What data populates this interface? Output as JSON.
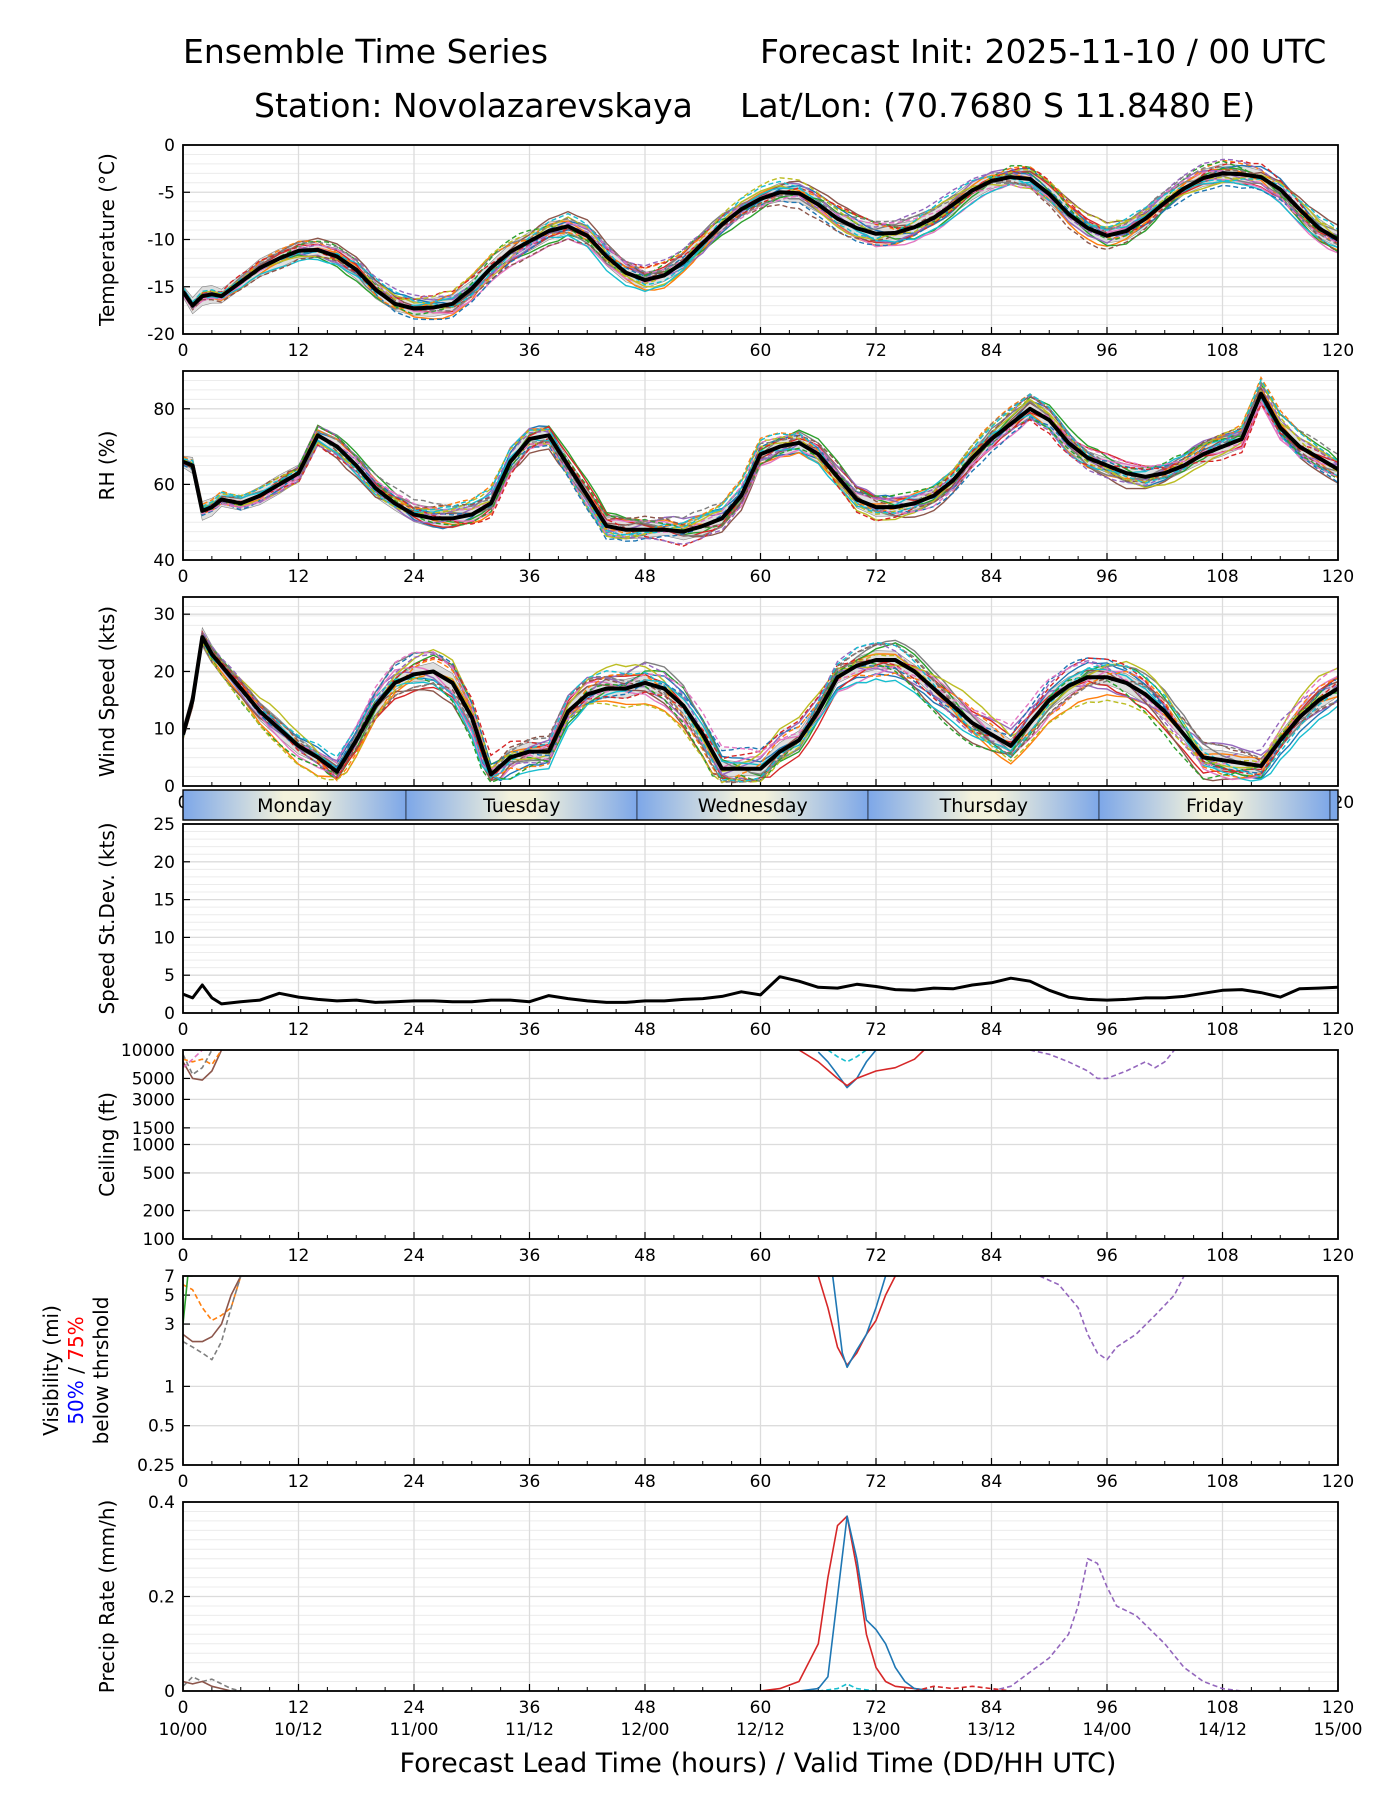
{
  "header": {
    "title": "Ensemble Time Series",
    "init": "Forecast Init: 2025-11-10 / 00 UTC",
    "station": "Station: Novolazarevskaya",
    "latlon": "Lat/Lon: (70.7680 S 11.8480 E)"
  },
  "xlabel": "Forecast Lead Time (hours) / Valid Time (DD/HH UTC)",
  "lead_ticks": [
    0,
    12,
    24,
    36,
    48,
    60,
    72,
    84,
    96,
    108,
    120
  ],
  "valid_tick_labels": [
    "10/00",
    "10/12",
    "11/00",
    "11/12",
    "12/00",
    "12/12",
    "13/00",
    "13/12",
    "14/00",
    "14/12",
    "15/00"
  ],
  "days": [
    {
      "label": "Monday",
      "start": 0,
      "end": 23.2
    },
    {
      "label": "Tuesday",
      "start": 23.2,
      "end": 47.2
    },
    {
      "label": "Wednesday",
      "start": 47.2,
      "end": 71.2
    },
    {
      "label": "Thursday",
      "start": 71.2,
      "end": 95.2
    },
    {
      "label": "Friday",
      "start": 95.2,
      "end": 119.2
    }
  ],
  "visibility_label": {
    "line1": "Visibility (mi)",
    "p50": "50%",
    "slash": " / ",
    "p75": "75%",
    "line3": "below thrshold"
  },
  "colors": {
    "mean": "#000000",
    "band": "#bbbbbb",
    "p50": "#0000ff",
    "p75": "#ff0000",
    "members": [
      "#1f77b4",
      "#ff7f0e",
      "#2ca02c",
      "#d62728",
      "#9467bd",
      "#8c564b",
      "#e377c2",
      "#7f7f7f",
      "#bcbd22",
      "#17becf"
    ],
    "day_band": [
      "#7da7e8",
      "#f3f2dc"
    ]
  },
  "chart_data": [
    {
      "type": "line",
      "id": "temp",
      "ylabel": "Temperature (°C)",
      "ylim": [
        -20,
        0
      ],
      "yticks": [
        0,
        -5,
        -10,
        -15,
        -20
      ],
      "x": [
        0,
        1,
        2,
        3,
        4,
        6,
        8,
        10,
        12,
        14,
        16,
        18,
        20,
        22,
        24,
        26,
        28,
        30,
        32,
        34,
        36,
        38,
        40,
        42,
        44,
        46,
        48,
        50,
        52,
        54,
        56,
        58,
        60,
        62,
        64,
        66,
        68,
        70,
        72,
        74,
        76,
        78,
        80,
        82,
        84,
        86,
        88,
        90,
        92,
        94,
        96,
        98,
        100,
        102,
        104,
        106,
        108,
        110,
        112,
        114,
        116,
        118,
        120
      ],
      "mean": [
        -15.5,
        -17,
        -16,
        -15.8,
        -16,
        -14.5,
        -13,
        -12,
        -11.2,
        -11.1,
        -11.8,
        -13.2,
        -15.3,
        -16.8,
        -17.3,
        -17.2,
        -16.8,
        -15.2,
        -13,
        -11.3,
        -10.2,
        -9.1,
        -8.6,
        -9.6,
        -11.8,
        -13.5,
        -14.3,
        -13.8,
        -12.4,
        -10.4,
        -8.4,
        -6.8,
        -5.7,
        -5,
        -5.1,
        -6.3,
        -7.8,
        -8.8,
        -9.4,
        -9.3,
        -8.7,
        -7.7,
        -6.3,
        -4.8,
        -3.8,
        -3.4,
        -3.6,
        -5.2,
        -7.3,
        -8.8,
        -9.6,
        -9.1,
        -7.8,
        -6.1,
        -4.6,
        -3.5,
        -3,
        -3.1,
        -3.4,
        -4.7,
        -6.8,
        -8.8,
        -10
      ]
    },
    {
      "type": "line",
      "id": "rh",
      "ylabel": "RH (%)",
      "ylim": [
        40,
        90
      ],
      "yticks": [
        40,
        60,
        80
      ],
      "x": [
        0,
        1,
        2,
        3,
        4,
        6,
        8,
        10,
        12,
        14,
        16,
        18,
        20,
        22,
        24,
        26,
        28,
        30,
        32,
        34,
        36,
        38,
        40,
        42,
        44,
        46,
        48,
        50,
        52,
        54,
        56,
        58,
        60,
        62,
        64,
        66,
        68,
        70,
        72,
        74,
        76,
        78,
        80,
        82,
        84,
        86,
        88,
        90,
        92,
        94,
        96,
        98,
        100,
        102,
        104,
        106,
        108,
        110,
        112,
        114,
        116,
        118,
        120
      ],
      "mean": [
        66,
        65,
        53,
        54,
        56,
        55,
        57,
        60,
        63,
        73,
        70,
        65,
        59,
        55,
        52,
        51,
        51,
        52,
        55,
        66,
        72,
        73,
        65,
        57,
        49,
        48,
        48,
        48,
        47.5,
        49,
        51,
        57,
        68,
        70,
        71,
        68,
        62,
        56,
        54,
        54,
        55,
        57,
        61,
        67,
        72,
        76,
        80,
        77,
        71,
        67,
        65,
        63,
        62,
        63,
        65,
        68,
        70,
        72,
        84,
        75,
        70,
        67,
        64
      ]
    },
    {
      "type": "line",
      "id": "wind",
      "ylabel": "Wind Speed (kts)",
      "ylim": [
        0,
        33
      ],
      "yticks": [
        0,
        10,
        20,
        30
      ],
      "x": [
        0,
        1,
        2,
        3,
        4,
        6,
        8,
        10,
        12,
        14,
        16,
        18,
        20,
        22,
        24,
        26,
        28,
        30,
        32,
        34,
        36,
        38,
        40,
        42,
        44,
        46,
        48,
        50,
        52,
        54,
        56,
        58,
        60,
        62,
        64,
        66,
        68,
        70,
        72,
        74,
        76,
        78,
        80,
        82,
        84,
        86,
        88,
        90,
        92,
        94,
        96,
        98,
        100,
        102,
        104,
        106,
        108,
        110,
        112,
        114,
        116,
        118,
        120
      ],
      "mean": [
        9,
        15,
        26,
        23,
        21,
        17,
        13,
        10,
        7,
        5,
        2.5,
        8,
        14,
        18,
        19.5,
        20,
        18,
        12,
        2,
        5,
        6,
        6,
        13,
        16,
        17,
        17,
        18,
        17,
        14,
        9,
        3,
        3,
        3,
        6,
        8,
        13,
        19,
        21,
        22,
        22,
        20,
        17,
        14,
        11,
        9,
        7,
        11,
        15,
        17.5,
        19,
        19,
        18,
        16,
        13,
        9,
        5,
        4.5,
        4,
        3.5,
        8,
        12,
        15,
        17
      ]
    },
    {
      "type": "line",
      "id": "sdev",
      "ylabel": "Speed St.Dev. (kts)",
      "ylim": [
        0,
        25
      ],
      "yticks": [
        0,
        5,
        10,
        15,
        20,
        25
      ],
      "x": [
        0,
        1,
        2,
        3,
        4,
        6,
        8,
        10,
        12,
        14,
        16,
        18,
        20,
        22,
        24,
        26,
        28,
        30,
        32,
        34,
        36,
        38,
        40,
        42,
        44,
        46,
        48,
        50,
        52,
        54,
        56,
        58,
        60,
        62,
        64,
        66,
        68,
        70,
        72,
        74,
        76,
        78,
        80,
        82,
        84,
        86,
        88,
        90,
        92,
        94,
        96,
        98,
        100,
        102,
        104,
        106,
        108,
        110,
        112,
        114,
        116,
        118,
        120
      ],
      "mean": [
        2.5,
        2,
        3.7,
        2,
        1.2,
        1.5,
        1.7,
        2.6,
        2.1,
        1.8,
        1.6,
        1.7,
        1.4,
        1.5,
        1.6,
        1.6,
        1.5,
        1.5,
        1.7,
        1.7,
        1.5,
        2.3,
        1.9,
        1.6,
        1.4,
        1.4,
        1.6,
        1.6,
        1.8,
        1.9,
        2.2,
        2.8,
        2.4,
        4.8,
        4.2,
        3.4,
        3.3,
        3.8,
        3.5,
        3.1,
        3,
        3.3,
        3.2,
        3.7,
        4,
        4.6,
        4.2,
        3,
        2.1,
        1.8,
        1.7,
        1.8,
        2,
        2,
        2.2,
        2.6,
        3,
        3.1,
        2.7,
        2.1,
        3.2,
        3.3,
        3.4
      ]
    },
    {
      "type": "line",
      "id": "ceiling",
      "ylabel": "Ceiling (ft)",
      "yscale": "log",
      "ylim": [
        100,
        10000
      ],
      "yticks": [
        100,
        200,
        500,
        1000,
        1500,
        3000,
        5000,
        10000
      ],
      "series": [
        {
          "name": "member-1",
          "style": "solid",
          "color_index": 0,
          "x": [
            66,
            67,
            68,
            69,
            70,
            71,
            72
          ],
          "values": [
            9500,
            7500,
            5500,
            4000,
            5000,
            7500,
            10000
          ]
        },
        {
          "name": "member-4",
          "style": "solid",
          "color_index": 3,
          "x": [
            64,
            66,
            68,
            69,
            70,
            72,
            74,
            76,
            77
          ],
          "values": [
            10000,
            7500,
            5000,
            4200,
            5000,
            6000,
            6500,
            8000,
            10000
          ]
        },
        {
          "name": "member-10",
          "style": "dashed",
          "color_index": 9,
          "x": [
            67,
            68,
            69,
            70,
            71
          ],
          "values": [
            10000,
            8500,
            7500,
            8500,
            10000
          ]
        },
        {
          "name": "member-5",
          "style": "dashed",
          "color_index": 4,
          "x": [
            88,
            90,
            92,
            94,
            95,
            96,
            98,
            100,
            101,
            102,
            103
          ],
          "values": [
            10000,
            9000,
            7500,
            6000,
            5000,
            5000,
            6000,
            7500,
            6500,
            7500,
            10000
          ]
        },
        {
          "name": "member-6",
          "style": "solid",
          "color_index": 5,
          "x": [
            0,
            1,
            2,
            3,
            4
          ],
          "values": [
            7500,
            5000,
            4800,
            6000,
            10000
          ]
        },
        {
          "name": "member-2",
          "style": "dashed",
          "color_index": 1,
          "x": [
            0,
            1,
            2,
            3,
            4
          ],
          "values": [
            8000,
            7500,
            8000,
            7000,
            10000
          ]
        },
        {
          "name": "member-8",
          "style": "dashed",
          "color_index": 7,
          "x": [
            0,
            1,
            2,
            3
          ],
          "values": [
            9000,
            5500,
            6500,
            10000
          ]
        },
        {
          "name": "member-7",
          "style": "dashed",
          "color_index": 6,
          "x": [
            0,
            1,
            2
          ],
          "values": [
            6500,
            8000,
            10000
          ]
        }
      ]
    },
    {
      "type": "line",
      "id": "visibility",
      "ylabel": "Visibility (mi)",
      "yscale": "log",
      "ylim": [
        0.25,
        7
      ],
      "yticks": [
        0.25,
        0.5,
        1,
        3,
        5,
        7
      ],
      "series": [
        {
          "name": "member-4",
          "style": "solid",
          "color_index": 3,
          "x": [
            66,
            67,
            68,
            69,
            70,
            71,
            72,
            73,
            74
          ],
          "values": [
            7,
            4,
            2,
            1.45,
            1.8,
            2.5,
            3.2,
            5,
            7
          ]
        },
        {
          "name": "member-1",
          "style": "solid",
          "color_index": 0,
          "x": [
            67.5,
            68.5,
            69,
            70,
            71,
            72,
            73
          ],
          "values": [
            7,
            1.8,
            1.4,
            1.9,
            2.5,
            4,
            7
          ]
        },
        {
          "name": "member-5",
          "style": "dashed",
          "color_index": 4,
          "x": [
            89,
            91,
            93,
            94,
            95,
            96,
            97,
            99,
            101,
            103,
            104
          ],
          "values": [
            7,
            6,
            4,
            2.5,
            1.8,
            1.6,
            2,
            2.5,
            3.5,
            5,
            7
          ]
        },
        {
          "name": "member-2",
          "style": "dashed",
          "color_index": 1,
          "x": [
            0,
            1,
            2,
            3,
            4,
            5,
            6
          ],
          "values": [
            6,
            5.5,
            4,
            3.2,
            3.5,
            4,
            7
          ]
        },
        {
          "name": "member-6",
          "style": "solid",
          "color_index": 5,
          "x": [
            0,
            1,
            2,
            3,
            4,
            5,
            6
          ],
          "values": [
            2.5,
            2.2,
            2.2,
            2.4,
            3,
            5,
            7
          ]
        },
        {
          "name": "member-8",
          "style": "dashed",
          "color_index": 7,
          "x": [
            0,
            1,
            2,
            3,
            4,
            5,
            6
          ],
          "values": [
            2.2,
            2,
            1.8,
            1.6,
            2.2,
            4,
            7
          ]
        },
        {
          "name": "member-3",
          "style": "solid",
          "color_index": 2,
          "x": [
            0,
            0.5,
            1
          ],
          "values": [
            3,
            7,
            7
          ]
        }
      ]
    },
    {
      "type": "line",
      "id": "precip",
      "ylabel": "Precip Rate (mm/h)",
      "ylim": [
        0,
        0.4
      ],
      "yticks": [
        0,
        0.2,
        0.4
      ],
      "series": [
        {
          "name": "member-4",
          "style": "solid",
          "color_index": 3,
          "x": [
            60,
            62,
            64,
            66,
            67,
            68,
            69,
            70,
            71,
            72,
            73,
            74,
            76,
            78
          ],
          "values": [
            0,
            0.005,
            0.02,
            0.1,
            0.24,
            0.35,
            0.37,
            0.26,
            0.12,
            0.05,
            0.02,
            0.01,
            0.005,
            0
          ]
        },
        {
          "name": "member-1",
          "style": "solid",
          "color_index": 0,
          "x": [
            64,
            66,
            67,
            68,
            69,
            70,
            71,
            72,
            73,
            74,
            75,
            76,
            78
          ],
          "values": [
            0,
            0.005,
            0.03,
            0.2,
            0.37,
            0.28,
            0.15,
            0.13,
            0.1,
            0.05,
            0.02,
            0.005,
            0
          ]
        },
        {
          "name": "member-5",
          "style": "dashed",
          "color_index": 4,
          "x": [
            84,
            86,
            88,
            90,
            92,
            93,
            94,
            95,
            96,
            97,
            98,
            99,
            100,
            102,
            104,
            106,
            108,
            110
          ],
          "values": [
            0,
            0.01,
            0.04,
            0.07,
            0.12,
            0.18,
            0.28,
            0.27,
            0.22,
            0.18,
            0.17,
            0.16,
            0.14,
            0.1,
            0.05,
            0.02,
            0.005,
            0
          ]
        },
        {
          "name": "member-10",
          "style": "dashed",
          "color_index": 9,
          "x": [
            66,
            68,
            69,
            70,
            72
          ],
          "values": [
            0,
            0.005,
            0.015,
            0.005,
            0
          ]
        },
        {
          "name": "member-8",
          "style": "dashed",
          "color_index": 7,
          "x": [
            0,
            1,
            2,
            3,
            4,
            5,
            6
          ],
          "values": [
            0.01,
            0.03,
            0.02,
            0.025,
            0.015,
            0.005,
            0
          ]
        },
        {
          "name": "member-6",
          "style": "solid",
          "color_index": 5,
          "x": [
            0,
            1,
            2,
            3,
            4,
            5
          ],
          "values": [
            0.02,
            0.015,
            0.02,
            0.01,
            0.005,
            0
          ]
        },
        {
          "name": "member-4b",
          "style": "dashed",
          "color_index": 3,
          "x": [
            76,
            78,
            80,
            82,
            84,
            86
          ],
          "values": [
            0,
            0.01,
            0.005,
            0.01,
            0.005,
            0
          ]
        }
      ]
    }
  ]
}
